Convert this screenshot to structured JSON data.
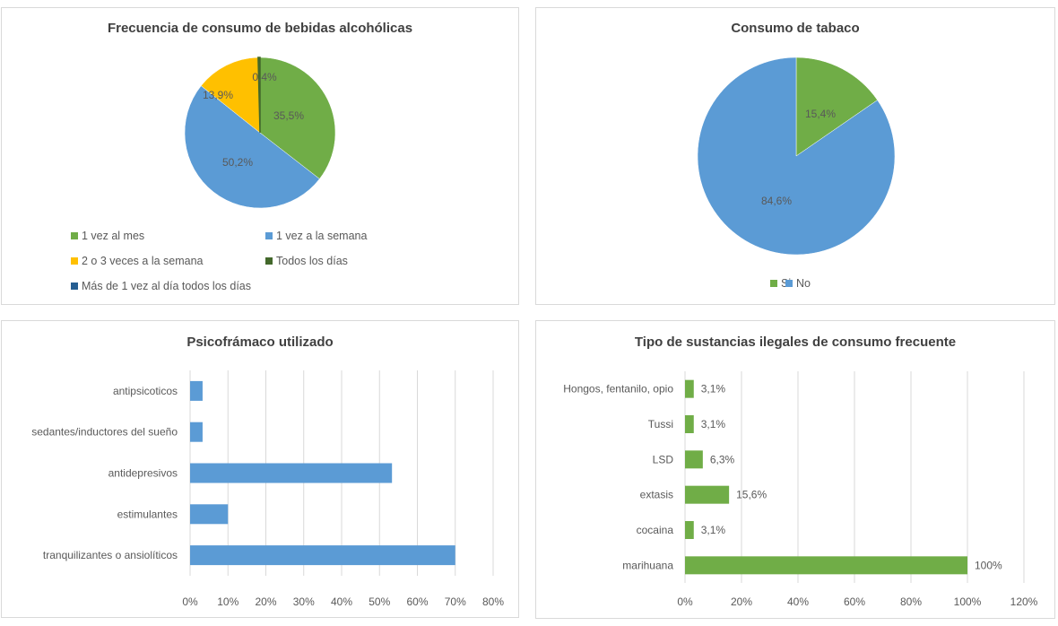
{
  "chart_data": [
    {
      "type": "pie",
      "title": "Frecuencia de consumo de bebidas alcohólicas",
      "slices": [
        {
          "label": "1 vez al mes",
          "value": 35.5,
          "text": "35,5%",
          "color": "#70ad47"
        },
        {
          "label": "1 vez a la semana",
          "value": 50.2,
          "text": "50,2%",
          "color": "#5b9bd5"
        },
        {
          "label": "2 o 3 veces a la semana",
          "value": 13.9,
          "text": "13,9%",
          "color": "#ffc000"
        },
        {
          "label": "Todos los días",
          "value": 0.4,
          "text": "0,4%",
          "color": "#43682b"
        },
        {
          "label": "Más de 1 vez al día todos los días",
          "value": 0,
          "text": "",
          "color": "#255e91"
        }
      ],
      "legend_position": "bottom"
    },
    {
      "type": "pie",
      "title": "Consumo de tabaco",
      "slices": [
        {
          "label": "Si",
          "value": 15.4,
          "text": "15,4%",
          "color": "#70ad47"
        },
        {
          "label": "No",
          "value": 84.6,
          "text": "84,6%",
          "color": "#5b9bd5"
        }
      ],
      "legend_position": "bottom"
    },
    {
      "type": "bar",
      "orientation": "horizontal",
      "title": "Psicofrámaco utilizado",
      "categories": [
        "antipsicoticos",
        "sedantes/inductores del sueño",
        "antidepresivos",
        "estimulantes",
        "tranquilizantes o ansiolíticos"
      ],
      "values": [
        3.3,
        3.3,
        53.3,
        10,
        70
      ],
      "color": "#5b9bd5",
      "xlim": [
        0,
        80
      ],
      "xticks": [
        "0%",
        "10%",
        "20%",
        "30%",
        "40%",
        "50%",
        "60%",
        "70%",
        "80%"
      ],
      "grid": true
    },
    {
      "type": "bar",
      "orientation": "horizontal",
      "title": "Tipo de sustancias ilegales de consumo frecuente",
      "categories": [
        "Hongos, fentanilo, opio",
        "Tussi",
        "LSD",
        "extasis",
        "cocaina",
        "marihuana"
      ],
      "values": [
        3.1,
        3.1,
        6.3,
        15.6,
        3.1,
        100
      ],
      "data_labels": [
        "3,1%",
        "3,1%",
        "6,3%",
        "15,6%",
        "3,1%",
        "100%"
      ],
      "color": "#70ad47",
      "xlim": [
        0,
        120
      ],
      "xticks": [
        "0%",
        "20%",
        "40%",
        "60%",
        "80%",
        "100%",
        "120%"
      ],
      "grid": true
    }
  ]
}
